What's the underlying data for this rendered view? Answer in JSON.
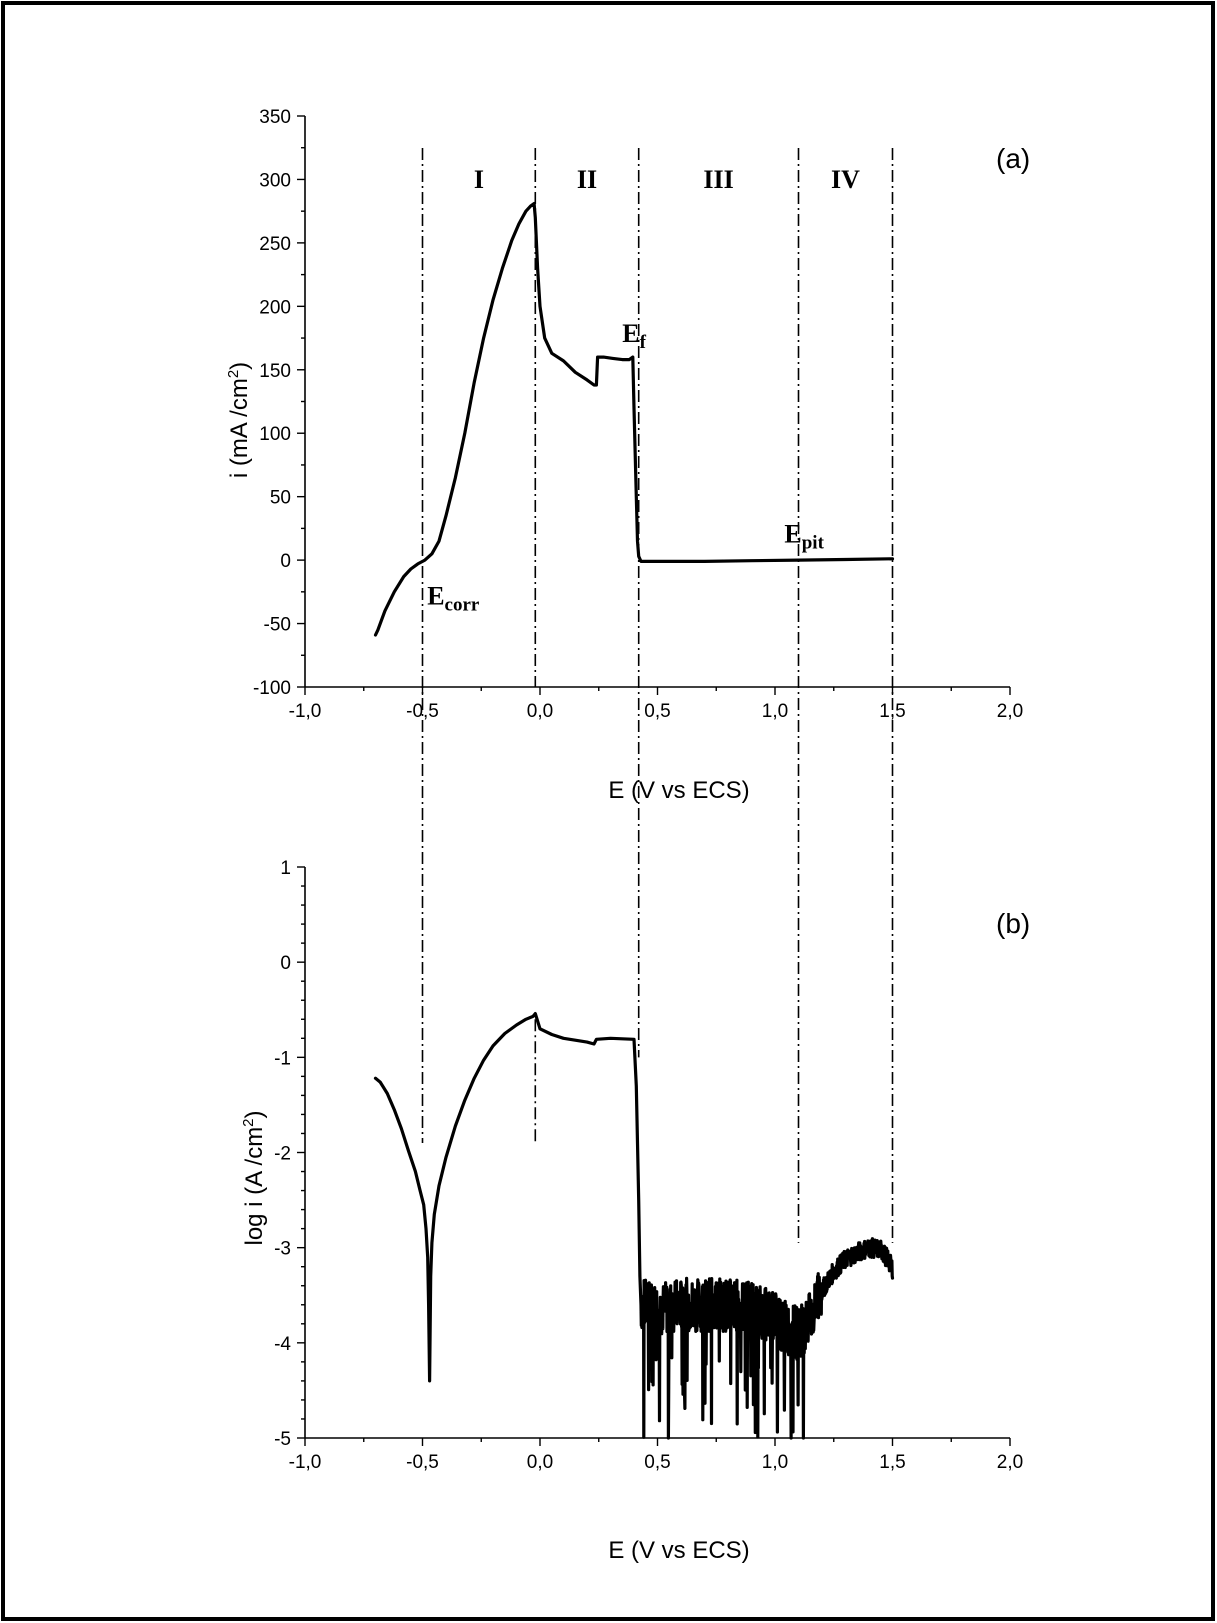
{
  "chart_data": [
    {
      "type": "line",
      "panel_label": "(a)",
      "xlabel": "E (V vs ECS)",
      "ylabel_main": "i (mA /cm",
      "ylabel_sup": "2",
      "ylabel_tail": ")",
      "xlim": [
        -1.0,
        2.0
      ],
      "ylim": [
        -100,
        350
      ],
      "xticks": [
        -1.0,
        -0.5,
        0.0,
        0.5,
        1.0,
        1.5,
        2.0
      ],
      "xtick_labels": [
        "-1,0",
        "-0,5",
        "0,0",
        "0,5",
        "1,0",
        "1,5",
        "2,0"
      ],
      "yticks": [
        -100,
        -50,
        0,
        50,
        100,
        150,
        200,
        250,
        300,
        350
      ],
      "ytick_labels": [
        "-100",
        "-50",
        "0",
        "50",
        "100",
        "150",
        "200",
        "250",
        "300",
        "350"
      ],
      "regions": [
        "I",
        "II",
        "III",
        "IV"
      ],
      "annotations": {
        "ecorr": {
          "main": "E",
          "sub": "corr",
          "x": -0.48,
          "y": -35
        },
        "ef": {
          "main": "E",
          "sub": "f",
          "x": 0.35,
          "y": 172
        },
        "epit": {
          "main": "E",
          "sub": "pit",
          "x": 1.04,
          "y": 14
        }
      },
      "series": [
        {
          "x": [
            -0.7,
            -0.69,
            -0.66,
            -0.62,
            -0.58,
            -0.55,
            -0.52,
            -0.49,
            -0.46,
            -0.43,
            -0.4,
            -0.36,
            -0.32,
            -0.28,
            -0.24,
            -0.2,
            -0.16,
            -0.12,
            -0.09,
            -0.06,
            -0.04,
            -0.025,
            -0.02,
            -0.01,
            0.0,
            0.02,
            0.05,
            0.1,
            0.15,
            0.2,
            0.23,
            0.24,
            0.245,
            0.27,
            0.31,
            0.35,
            0.38,
            0.395,
            0.4,
            0.41,
            0.415,
            0.42,
            0.43,
            0.5,
            0.7,
            0.9,
            1.1,
            1.3,
            1.5
          ],
          "y": [
            -59,
            -55,
            -40,
            -25,
            -13,
            -7,
            -3,
            0,
            5,
            15,
            35,
            65,
            100,
            140,
            175,
            205,
            230,
            252,
            265,
            275,
            279,
            281,
            270,
            230,
            200,
            175,
            163,
            157,
            148,
            142,
            138,
            138,
            160,
            160,
            159,
            158,
            158,
            160,
            120,
            50,
            15,
            3,
            -1,
            -1,
            -1,
            -0.5,
            0,
            0.5,
            1
          ]
        }
      ]
    },
    {
      "type": "line",
      "panel_label": "(b)",
      "xlabel": "E (V vs ECS)",
      "ylabel_main": "log i (A /cm",
      "ylabel_sup": "2",
      "ylabel_tail": ")",
      "xlim": [
        -1.0,
        2.0
      ],
      "ylim": [
        -5,
        1
      ],
      "xticks": [
        -1.0,
        -0.5,
        0.0,
        0.5,
        1.0,
        1.5,
        2.0
      ],
      "xtick_labels": [
        "-1,0",
        "-0,5",
        "0,0",
        "0,5",
        "1,0",
        "1,5",
        "2,0"
      ],
      "yticks": [
        -5,
        -4,
        -3,
        -2,
        -1,
        0,
        1
      ],
      "ytick_labels": [
        "-5",
        "-4",
        "-3",
        "-2",
        "-1",
        "0",
        "1"
      ],
      "series": [
        {
          "x": [
            -0.7,
            -0.68,
            -0.65,
            -0.62,
            -0.59,
            -0.56,
            -0.53,
            -0.51,
            -0.495,
            -0.485,
            -0.478,
            -0.474,
            -0.47,
            -0.465,
            -0.46,
            -0.45,
            -0.43,
            -0.4,
            -0.36,
            -0.32,
            -0.28,
            -0.24,
            -0.2,
            -0.15,
            -0.1,
            -0.06,
            -0.03,
            -0.02,
            0.0,
            0.05,
            0.1,
            0.2,
            0.23,
            0.24,
            0.3,
            0.4,
            0.41,
            0.42,
            0.425,
            0.43
          ],
          "y": [
            -1.22,
            -1.26,
            -1.38,
            -1.55,
            -1.75,
            -1.98,
            -2.2,
            -2.4,
            -2.55,
            -2.8,
            -3.1,
            -3.6,
            -4.4,
            -3.3,
            -2.95,
            -2.65,
            -2.35,
            -2.05,
            -1.72,
            -1.45,
            -1.22,
            -1.03,
            -0.88,
            -0.75,
            -0.66,
            -0.6,
            -0.57,
            -0.54,
            -0.7,
            -0.76,
            -0.8,
            -0.84,
            -0.86,
            -0.81,
            -0.8,
            -0.81,
            -1.3,
            -2.5,
            -3.3,
            -3.6
          ]
        },
        {
          "x_start": 0.43,
          "x_end": 1.5,
          "noisy": true,
          "x": [
            0.43,
            0.5,
            0.6,
            0.7,
            0.8,
            0.9,
            1.0,
            1.05,
            1.1,
            1.15,
            1.2,
            1.25,
            1.3,
            1.35,
            1.4,
            1.45,
            1.48,
            1.5
          ],
          "y": [
            -3.6,
            -3.65,
            -3.6,
            -3.6,
            -3.6,
            -3.62,
            -3.75,
            -3.85,
            -3.9,
            -3.75,
            -3.45,
            -3.25,
            -3.12,
            -3.05,
            -3.0,
            -3.02,
            -3.12,
            -3.22
          ]
        }
      ]
    }
  ]
}
